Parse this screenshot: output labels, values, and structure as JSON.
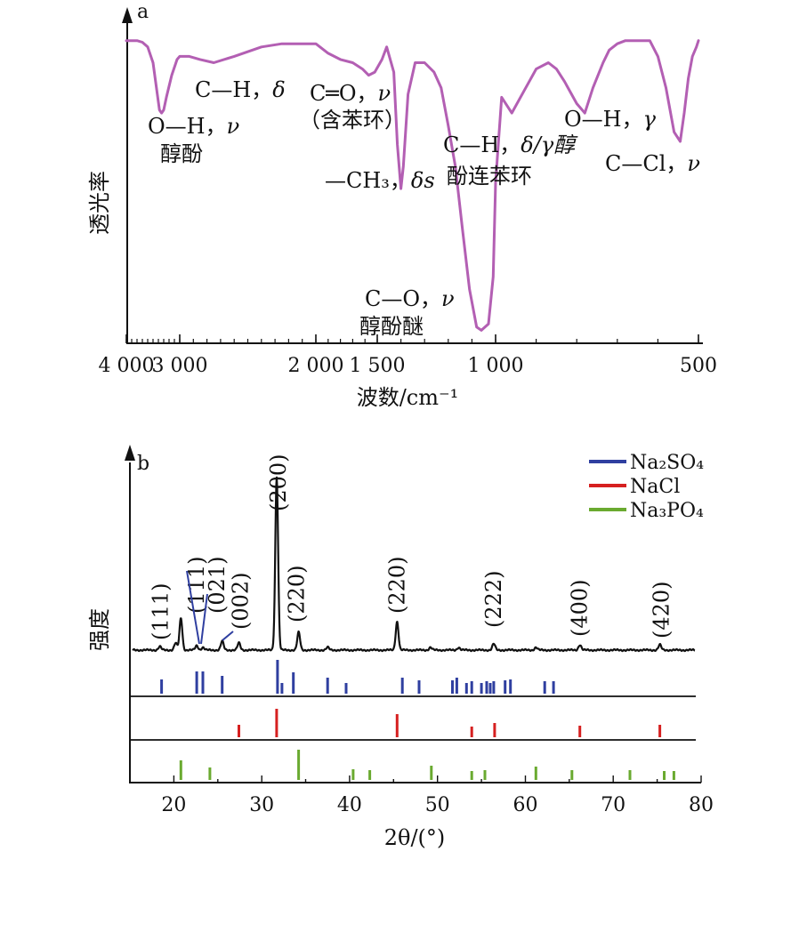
{
  "chart_data": [
    {
      "panel": "a",
      "type": "line",
      "xlabel": "波数/cm⁻¹",
      "ylabel": "透光率",
      "xlim": [
        4000,
        500
      ],
      "xticks": [
        "4 000",
        "3 000",
        "2 000",
        "1 500",
        "1 000",
        "500"
      ],
      "xtick_values": [
        4000,
        3000,
        2000,
        1500,
        1000,
        500
      ],
      "line_color": "#b35fb3",
      "series": [
        {
          "x": [
            4000,
            3900,
            3800,
            3700,
            3600,
            3500,
            3420,
            3380,
            3340,
            3300,
            3250,
            3150,
            3050,
            3000,
            2930,
            2850,
            2750,
            2600,
            2400,
            2250,
            2100,
            2000,
            1900,
            1800,
            1700,
            1620,
            1570,
            1520,
            1480,
            1460,
            1430,
            1415,
            1400,
            1390,
            1370,
            1340,
            1300,
            1260,
            1230,
            1200,
            1170,
            1140,
            1110,
            1080,
            1060,
            1030,
            1010,
            1000,
            985,
            960,
            930,
            900,
            870,
            850,
            830,
            800,
            780,
            760,
            735,
            720,
            700,
            680,
            660,
            640,
            620,
            600,
            580,
            560,
            545,
            535,
            525,
            515,
            505,
            500
          ],
          "y": [
            95,
            95,
            95,
            94.5,
            93,
            88,
            78,
            73,
            72,
            73,
            77,
            84,
            89,
            90,
            90,
            89,
            88,
            90,
            93,
            94,
            94,
            94,
            91,
            89,
            88,
            86,
            84,
            85,
            89,
            93,
            85,
            62,
            48,
            55,
            78,
            88,
            88,
            85,
            80,
            68,
            55,
            35,
            16,
            4,
            3,
            5,
            20,
            50,
            77,
            72,
            79,
            86,
            88,
            86,
            82,
            75,
            72,
            80,
            88,
            92,
            94,
            95,
            95,
            95,
            95,
            90,
            80,
            66,
            63,
            72,
            83,
            90,
            93,
            95
          ]
        }
      ],
      "annotations": [
        [
          "O—H，",
          "ν"
        ],
        [
          "醇酚",
          ""
        ],
        [
          "C—H，",
          "δ"
        ],
        [
          "C═O，",
          "ν"
        ],
        [
          "（含苯环）",
          ""
        ],
        [
          "—CH₃，",
          "δs"
        ],
        [
          "C—H，",
          "δ/γ醇"
        ],
        [
          "酚连苯环",
          ""
        ],
        [
          "O—H，",
          "γ"
        ],
        [
          "C—Cl，",
          "ν"
        ],
        [
          "C—O，",
          "ν"
        ],
        [
          "醇酚醚",
          ""
        ]
      ]
    },
    {
      "panel": "b",
      "type": "line",
      "xlabel": "2θ/(°)",
      "ylabel": "强度",
      "xlim": [
        15,
        80
      ],
      "xticks": [
        "20",
        "30",
        "40",
        "50",
        "60",
        "70",
        "80"
      ],
      "xtick_values": [
        20,
        30,
        40,
        50,
        60,
        70,
        80
      ],
      "pattern": {
        "color": "#111111",
        "peaks": [
          {
            "x": 18.4,
            "h": 4
          },
          {
            "x": 20.2,
            "h": 8
          },
          {
            "x": 20.8,
            "h": 36
          },
          {
            "x": 22.6,
            "h": 5
          },
          {
            "x": 23.3,
            "h": 3
          },
          {
            "x": 25.5,
            "h": 10
          },
          {
            "x": 27.4,
            "h": 8
          },
          {
            "x": 31.7,
            "h": 195
          },
          {
            "x": 34.2,
            "h": 20
          },
          {
            "x": 37.5,
            "h": 3
          },
          {
            "x": 45.4,
            "h": 32
          },
          {
            "x": 49.2,
            "h": 3
          },
          {
            "x": 52.4,
            "h": 3
          },
          {
            "x": 56.4,
            "h": 7
          },
          {
            "x": 61.2,
            "h": 3
          },
          {
            "x": 66.2,
            "h": 6
          },
          {
            "x": 75.3,
            "h": 6
          }
        ]
      },
      "peak_labels": [
        {
          "x": 18.5,
          "text": "(111)"
        },
        {
          "x": 22.6,
          "text": "(111)"
        },
        {
          "x": 24.9,
          "text": "(021)"
        },
        {
          "x": 27.6,
          "text": "(002)"
        },
        {
          "x": 31.9,
          "text": "(200)"
        },
        {
          "x": 34.0,
          "text": "(220)"
        },
        {
          "x": 45.4,
          "text": "(220)"
        },
        {
          "x": 56.4,
          "text": "(222)"
        },
        {
          "x": 66.2,
          "text": "(400)"
        },
        {
          "x": 75.5,
          "text": "(420)"
        }
      ],
      "reference_series": [
        {
          "name": "Na₂SO₄",
          "color": "#2f3fa0",
          "sticks": [
            [
              18.6,
              16
            ],
            [
              22.6,
              25
            ],
            [
              23.3,
              25
            ],
            [
              25.5,
              20
            ],
            [
              31.8,
              38
            ],
            [
              32.3,
              12
            ],
            [
              33.6,
              24
            ],
            [
              37.5,
              18
            ],
            [
              39.6,
              12
            ],
            [
              46.0,
              18
            ],
            [
              47.9,
              15
            ],
            [
              51.7,
              15
            ],
            [
              52.2,
              18
            ],
            [
              53.3,
              12
            ],
            [
              53.9,
              14
            ],
            [
              55.0,
              12
            ],
            [
              55.6,
              14
            ],
            [
              56.0,
              12
            ],
            [
              56.4,
              14
            ],
            [
              57.7,
              15
            ],
            [
              58.3,
              16
            ],
            [
              62.2,
              14
            ],
            [
              63.2,
              14
            ]
          ]
        },
        {
          "name": "NaCl",
          "color": "#d62020",
          "sticks": [
            [
              27.4,
              14
            ],
            [
              31.7,
              32
            ],
            [
              45.4,
              26
            ],
            [
              53.9,
              12
            ],
            [
              56.5,
              16
            ],
            [
              66.2,
              13
            ],
            [
              75.3,
              14
            ]
          ]
        },
        {
          "name": "Na₃PO₄",
          "color": "#6aaa30",
          "sticks": [
            [
              20.8,
              22
            ],
            [
              24.1,
              14
            ],
            [
              34.2,
              34
            ],
            [
              40.4,
              12
            ],
            [
              42.3,
              11
            ],
            [
              49.3,
              16
            ],
            [
              53.9,
              10
            ],
            [
              55.4,
              11
            ],
            [
              61.2,
              15
            ],
            [
              65.3,
              11
            ],
            [
              71.9,
              11
            ],
            [
              75.8,
              10
            ],
            [
              76.9,
              10
            ]
          ]
        }
      ]
    }
  ]
}
